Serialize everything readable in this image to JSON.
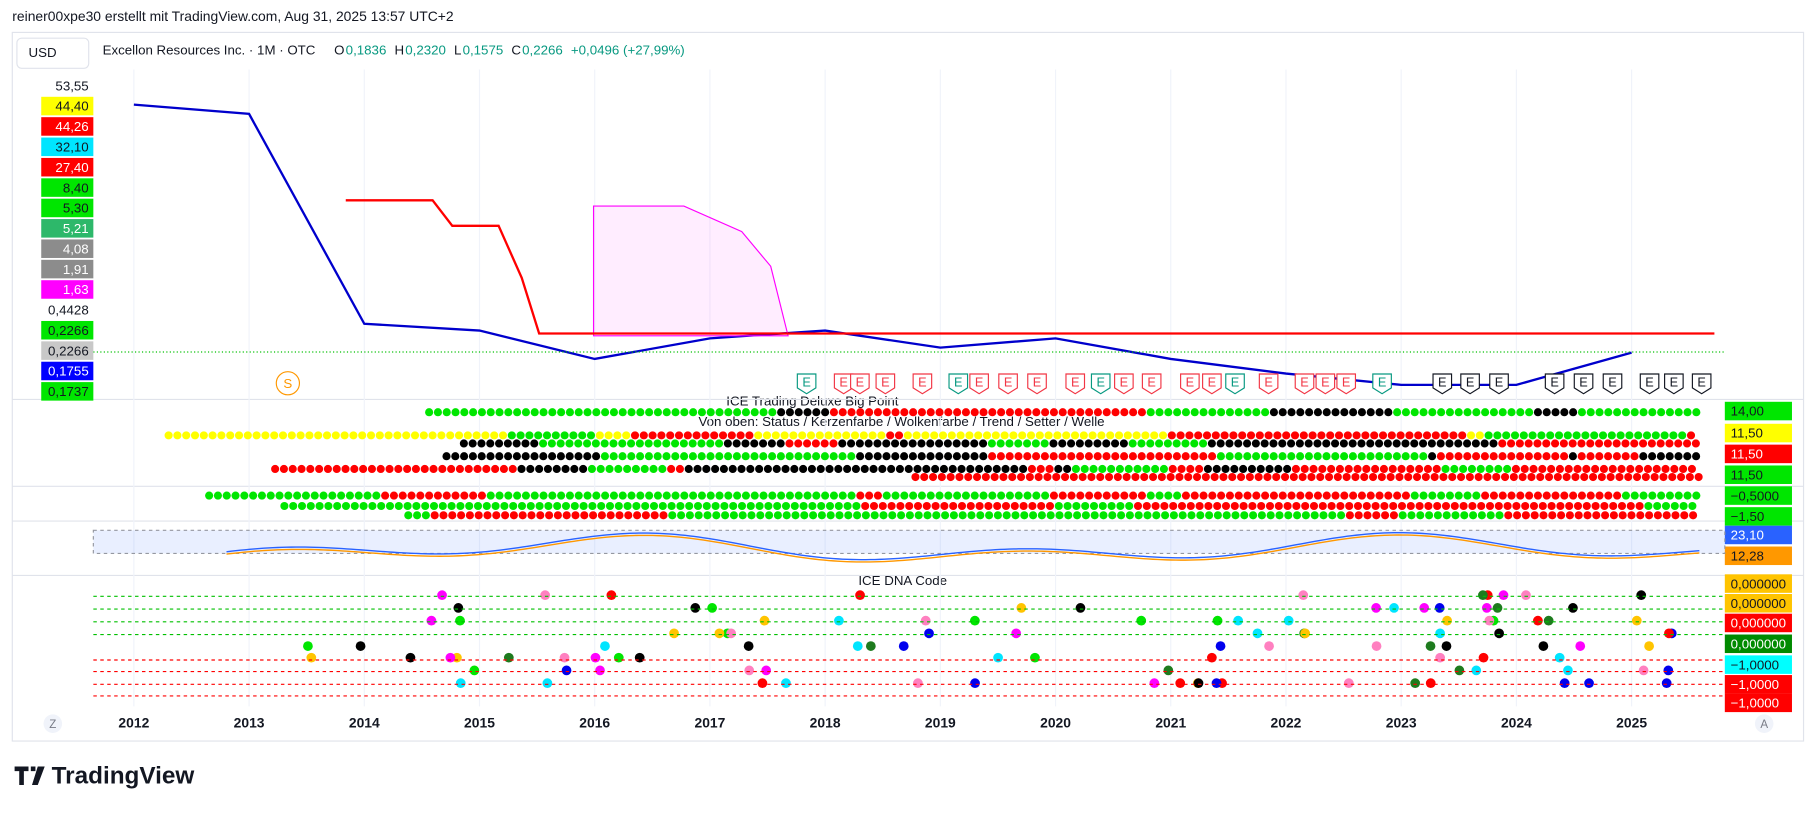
{
  "header": {
    "text": "reiner00xpe30 erstellt mit TradingView.com, Aug 31, 2025 13:57 UTC+2"
  },
  "currency": "USD",
  "symbol": {
    "title": "Excellon Resources Inc. · 1M · OTC",
    "ohlc": [
      {
        "label": "O",
        "value": "0,1836"
      },
      {
        "label": "H",
        "value": "0,2320"
      },
      {
        "label": "L",
        "value": "0,1575"
      },
      {
        "label": "C",
        "value": "0,2266"
      }
    ],
    "change": "+0,0496 (+27,99%)"
  },
  "price_labels": [
    {
      "text": "53,55",
      "bg": "#ffffff",
      "fg": "#131722"
    },
    {
      "text": "44,40",
      "bg": "#ffff00",
      "fg": "#131722"
    },
    {
      "text": "44,26",
      "bg": "#ff0000",
      "fg": "#ffffff"
    },
    {
      "text": "32,10",
      "bg": "#00e5ff",
      "fg": "#131722"
    },
    {
      "text": "27,40",
      "bg": "#ff0000",
      "fg": "#ffffff"
    },
    {
      "text": "8,40",
      "bg": "#00e600",
      "fg": "#131722"
    },
    {
      "text": "5,30",
      "bg": "#00e600",
      "fg": "#131722"
    },
    {
      "text": "5,21",
      "bg": "#2db86a",
      "fg": "#ffffff"
    },
    {
      "text": "4,08",
      "bg": "#8c8c8c",
      "fg": "#ffffff"
    },
    {
      "text": "1,91",
      "bg": "#8c8c8c",
      "fg": "#ffffff"
    },
    {
      "text": "1,63",
      "bg": "#ff00ff",
      "fg": "#ffffff"
    },
    {
      "text": "0,4428",
      "bg": "#ffffff",
      "fg": "#131722"
    },
    {
      "text": "0,2266",
      "bg": "#00e600",
      "fg": "#131722"
    },
    {
      "text": "0,2266",
      "bg": "#c8c8c8",
      "fg": "#131722"
    },
    {
      "text": "0,1755",
      "bg": "#0000ff",
      "fg": "#ffffff"
    },
    {
      "text": "0,1737",
      "bg": "#00e600",
      "fg": "#131722"
    }
  ],
  "right_labels": [
    {
      "text": "14,00",
      "bg": "#00e600",
      "fg": "#131722"
    },
    {
      "text": "11,50",
      "bg": "#ffff00",
      "fg": "#131722"
    },
    {
      "text": "11,50",
      "bg": "#ff0000",
      "fg": "#ffffff"
    },
    {
      "text": "11,50",
      "bg": "#00e600",
      "fg": "#131722"
    },
    {
      "text": "−0,5000",
      "bg": "#00e600",
      "fg": "#131722"
    },
    {
      "text": "−1,50",
      "bg": "#00e600",
      "fg": "#131722"
    },
    {
      "text": "23,10",
      "bg": "#2962ff",
      "fg": "#ffffff"
    },
    {
      "text": "12,28",
      "bg": "#ff9800",
      "fg": "#131722"
    },
    {
      "text": "0,000000",
      "bg": "#ffc400",
      "fg": "#131722"
    },
    {
      "text": "0,000000",
      "bg": "#ffc400",
      "fg": "#131722"
    },
    {
      "text": "0,000000",
      "bg": "#ff0000",
      "fg": "#ffffff"
    },
    {
      "text": "0,000000",
      "bg": "#008a00",
      "fg": "#ffffff"
    },
    {
      "text": "−1,0000",
      "bg": "#00ffff",
      "fg": "#131722"
    },
    {
      "text": "−1,0000",
      "bg": "#ff0000",
      "fg": "#ffffff"
    },
    {
      "text": "−1,0000",
      "bg": "#ff0000",
      "fg": "#ffffff"
    }
  ],
  "panels": {
    "big_point": "ICE Trading Deluxe Big Point",
    "legend": "Von oben: Status / Kerzenfarbe / Wolkenfarbe / Trend / Setter / Welle",
    "dna": "ICE DNA Code"
  },
  "markers": {
    "earnings": "E",
    "split": "S"
  },
  "axis_buttons": {
    "left": "Z",
    "right": "A"
  },
  "chart_data": {
    "type": "line",
    "log_scale": true,
    "ylim": [
      0.2,
      60
    ],
    "x": [
      2012,
      2013,
      2014,
      2015,
      2016,
      2017,
      2018,
      2019,
      2020,
      2021,
      2022,
      2023,
      2024,
      2025
    ],
    "series": [
      {
        "name": "Close",
        "color": "#0000cc",
        "values": [
          30,
          25,
          0.4,
          0.35,
          0.2,
          0.3,
          0.35,
          0.25,
          0.3,
          0.2,
          0.15,
          0.12,
          0.12,
          0.2266
        ]
      }
    ]
  },
  "footer": {
    "logo": "TradingView"
  }
}
